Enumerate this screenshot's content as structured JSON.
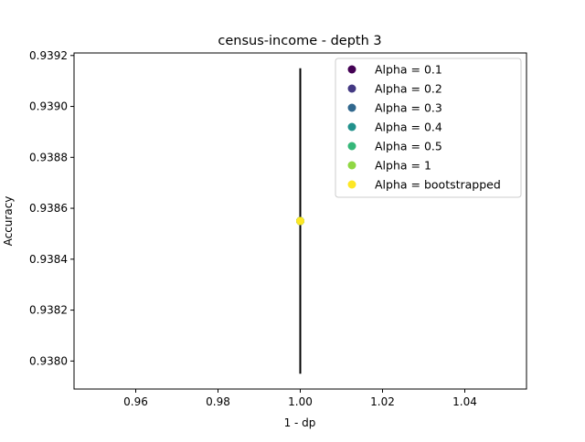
{
  "chart_data": {
    "type": "scatter",
    "title": "census-income - depth 3",
    "xlabel": "1 - dp",
    "ylabel": "Accuracy",
    "xlim": [
      0.945,
      1.055
    ],
    "ylim": [
      0.93789,
      0.93921
    ],
    "xticks": [
      0.96,
      0.98,
      1.0,
      1.02,
      1.04
    ],
    "xtick_labels": [
      "0.96",
      "0.98",
      "1.00",
      "1.02",
      "1.04"
    ],
    "yticks": [
      0.938,
      0.9382,
      0.9384,
      0.9386,
      0.9388,
      0.939,
      0.9392
    ],
    "ytick_labels": [
      "0.9380",
      "0.9382",
      "0.9384",
      "0.9386",
      "0.9388",
      "0.9390",
      "0.9392"
    ],
    "grid": false,
    "legend_position": "upper right",
    "series": [
      {
        "name": "Alpha = 0.1",
        "color": "#440154",
        "points": [
          {
            "x": 1.0,
            "y": 0.93855
          }
        ]
      },
      {
        "name": "Alpha = 0.2",
        "color": "#443983",
        "points": [
          {
            "x": 1.0,
            "y": 0.93855
          }
        ]
      },
      {
        "name": "Alpha = 0.3",
        "color": "#31688e",
        "points": [
          {
            "x": 1.0,
            "y": 0.93855
          }
        ]
      },
      {
        "name": "Alpha = 0.4",
        "color": "#21918c",
        "points": [
          {
            "x": 1.0,
            "y": 0.93855
          }
        ]
      },
      {
        "name": "Alpha = 0.5",
        "color": "#35b779",
        "points": [
          {
            "x": 1.0,
            "y": 0.93855
          }
        ]
      },
      {
        "name": "Alpha = 1",
        "color": "#90d743",
        "points": [
          {
            "x": 1.0,
            "y": 0.93855
          }
        ]
      },
      {
        "name": "Alpha = bootstrapped",
        "color": "#fde725",
        "points": [
          {
            "x": 1.0,
            "y": 0.93855
          }
        ]
      }
    ],
    "error_bars": [
      {
        "x": 1.0,
        "y_low": 0.93795,
        "y_high": 0.93915,
        "color": "#000000"
      }
    ]
  }
}
